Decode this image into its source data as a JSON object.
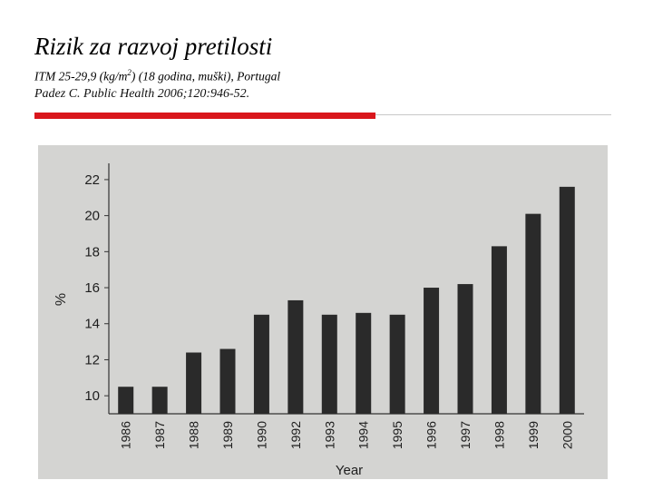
{
  "slide": {
    "title": "Rizik za razvoj pretilosti",
    "subtitle_pre": "ITM 25-29,9 (kg/m",
    "subtitle_sup": "2",
    "subtitle_post": ") (18 godina, muški), Portugal",
    "source": "Padez C. Public Health 2006;120:946-52."
  },
  "colors": {
    "accent_rule": "#d9161c",
    "bar": "#2a2a2a",
    "photo_bg": "#d4d4d2"
  },
  "chart_data": {
    "type": "bar",
    "categories": [
      "1986",
      "1987",
      "1988",
      "1989",
      "1990",
      "1992",
      "1993",
      "1994",
      "1995",
      "1996",
      "1997",
      "1998",
      "1999",
      "2000"
    ],
    "values": [
      10.5,
      10.5,
      12.4,
      12.6,
      14.5,
      15.3,
      14.5,
      14.6,
      14.5,
      16.0,
      16.2,
      18.3,
      20.1,
      21.6
    ],
    "xlabel": "Year",
    "ylabel": "%",
    "ylim": [
      9,
      22.5
    ],
    "yticks": [
      10,
      12,
      14,
      16,
      18,
      20,
      22
    ],
    "grid": false,
    "legend": "none"
  }
}
